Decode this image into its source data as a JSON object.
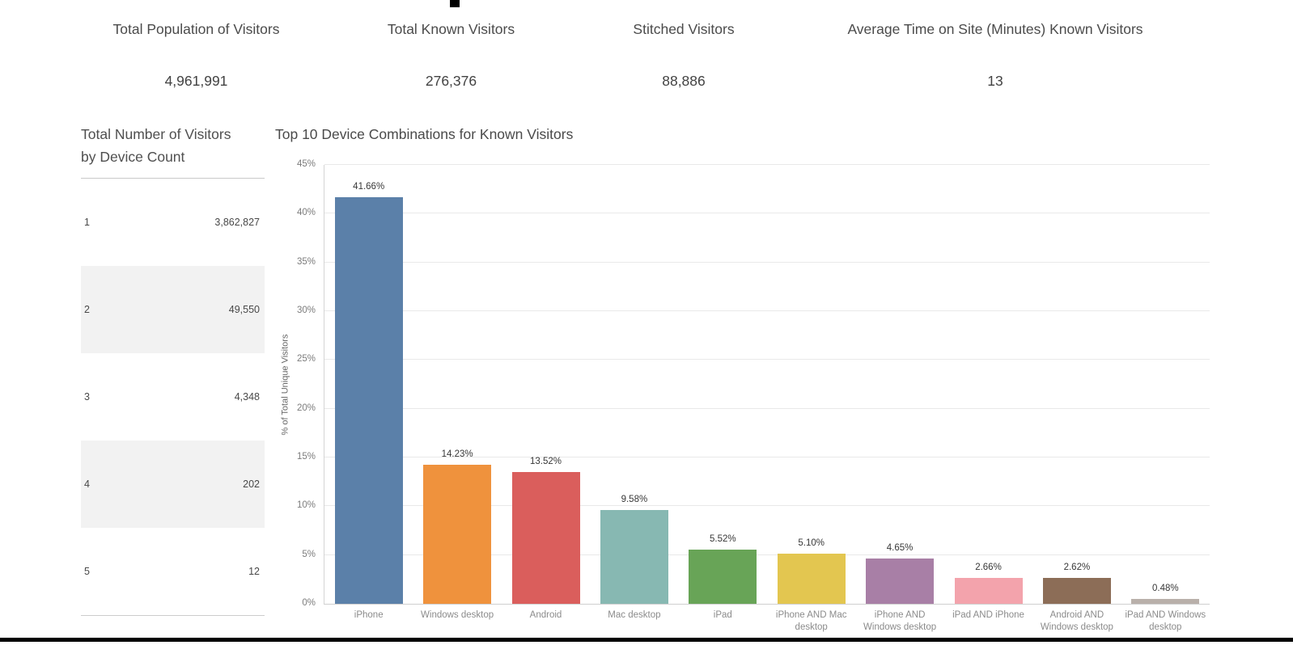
{
  "kpis": [
    {
      "label": "Total Population of Visitors",
      "value": "4,961,991"
    },
    {
      "label": "Total Known Visitors",
      "value": "276,376"
    },
    {
      "label": "Stitched Visitors",
      "value": "88,886"
    },
    {
      "label": "Average Time on Site (Minutes) Known Visitors",
      "value": "13"
    }
  ],
  "device_count_table": {
    "title": "Total Number of Visitors by Device Count",
    "rows": [
      {
        "device_count": "1",
        "visitors": "3,862,827"
      },
      {
        "device_count": "2",
        "visitors": "49,550"
      },
      {
        "device_count": "3",
        "visitors": "4,348"
      },
      {
        "device_count": "4",
        "visitors": "202"
      },
      {
        "device_count": "5",
        "visitors": "12"
      }
    ]
  },
  "chart_data": {
    "type": "bar",
    "title": "Top 10 Device Combinations for Known Visitors",
    "xlabel": "",
    "ylabel": "% of Total Unique Visitors",
    "ylim": [
      0,
      45
    ],
    "ytick_step": 5,
    "ytick_labels": [
      "0%",
      "5%",
      "10%",
      "15%",
      "20%",
      "25%",
      "30%",
      "35%",
      "40%",
      "45%"
    ],
    "grid": true,
    "legend": "none",
    "categories": [
      "iPhone",
      "Windows desktop",
      "Android",
      "Mac desktop",
      "iPad",
      "iPhone AND Mac desktop",
      "iPhone AND Windows desktop",
      "iPad AND iPhone",
      "Android AND Windows desktop",
      "iPad AND Windows desktop"
    ],
    "values": [
      41.66,
      14.23,
      13.52,
      9.58,
      5.52,
      5.1,
      4.65,
      2.66,
      2.62,
      0.48
    ],
    "bar_labels": [
      "41.66%",
      "14.23%",
      "13.52%",
      "9.58%",
      "5.52%",
      "5.10%",
      "4.65%",
      "2.66%",
      "2.62%",
      "0.48%"
    ],
    "colors": [
      "#5b80a9",
      "#ef923d",
      "#da5e5c",
      "#87b8b2",
      "#68a457",
      "#e3c650",
      "#a87fa6",
      "#f3a3ac",
      "#8c6d57",
      "#b9b0aa"
    ]
  }
}
